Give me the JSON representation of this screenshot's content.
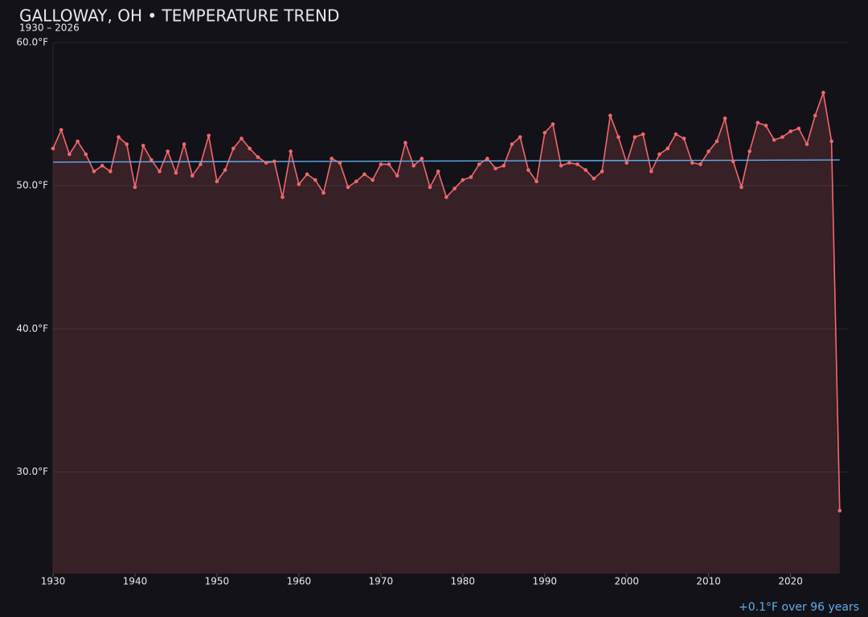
{
  "chart_data": {
    "type": "line",
    "title": "GALLOWAY, OH • TEMPERATURE TREND",
    "subtitle": "1930 – 2026",
    "annotation": "+0.1°F over 96 years",
    "x": [
      1930,
      1931,
      1932,
      1933,
      1934,
      1935,
      1936,
      1937,
      1938,
      1939,
      1940,
      1941,
      1942,
      1943,
      1944,
      1945,
      1946,
      1947,
      1948,
      1949,
      1950,
      1951,
      1952,
      1953,
      1954,
      1955,
      1956,
      1957,
      1958,
      1959,
      1960,
      1961,
      1962,
      1963,
      1964,
      1965,
      1966,
      1967,
      1968,
      1969,
      1970,
      1971,
      1972,
      1973,
      1974,
      1975,
      1976,
      1977,
      1978,
      1979,
      1980,
      1981,
      1982,
      1983,
      1984,
      1985,
      1986,
      1987,
      1988,
      1989,
      1990,
      1991,
      1992,
      1993,
      1994,
      1995,
      1996,
      1997,
      1998,
      1999,
      2000,
      2001,
      2002,
      2003,
      2004,
      2005,
      2006,
      2007,
      2008,
      2009,
      2010,
      2011,
      2012,
      2013,
      2014,
      2015,
      2016,
      2017,
      2018,
      2019,
      2020,
      2021,
      2022,
      2023,
      2024,
      2025,
      2026
    ],
    "values": [
      52.6,
      53.9,
      52.2,
      53.1,
      52.2,
      51.0,
      51.4,
      51.0,
      53.4,
      52.9,
      49.9,
      52.8,
      51.8,
      51.0,
      52.4,
      50.9,
      52.9,
      50.7,
      51.5,
      53.5,
      50.3,
      51.1,
      52.6,
      53.3,
      52.6,
      52.0,
      51.6,
      51.7,
      49.2,
      52.4,
      50.1,
      50.8,
      50.4,
      49.5,
      51.9,
      51.6,
      49.9,
      50.3,
      50.8,
      50.4,
      51.5,
      51.5,
      50.7,
      53.0,
      51.4,
      51.9,
      49.9,
      51.0,
      49.2,
      49.8,
      50.4,
      50.6,
      51.5,
      51.9,
      51.2,
      51.4,
      52.9,
      53.4,
      51.1,
      50.3,
      53.7,
      54.3,
      51.4,
      51.6,
      51.5,
      51.1,
      50.5,
      51.0,
      54.9,
      53.4,
      51.6,
      53.4,
      53.6,
      51.0,
      52.2,
      52.6,
      53.6,
      53.3,
      51.6,
      51.5,
      52.4,
      53.1,
      54.7,
      51.7,
      49.9,
      52.4,
      54.4,
      54.2,
      53.2,
      53.4,
      53.8,
      54.0,
      52.9,
      54.9,
      56.5,
      53.1,
      27.3
    ],
    "color": "#f0686e",
    "trend": {
      "x": [
        1930,
        2026
      ],
      "values": [
        51.65,
        51.8
      ],
      "color": "#5eb0ee"
    },
    "xlim": [
      1930,
      2027
    ],
    "ylim": [
      22.9,
      60
    ],
    "xticks": [
      1930,
      1940,
      1950,
      1960,
      1970,
      1980,
      1990,
      2000,
      2010,
      2020
    ],
    "yticks": [
      {
        "value": 30,
        "label": "30.0°F"
      },
      {
        "value": 40,
        "label": "40.0°F"
      },
      {
        "value": 50,
        "label": "50.0°F"
      },
      {
        "value": 60,
        "label": "60.0°F"
      }
    ],
    "grid": true
  }
}
